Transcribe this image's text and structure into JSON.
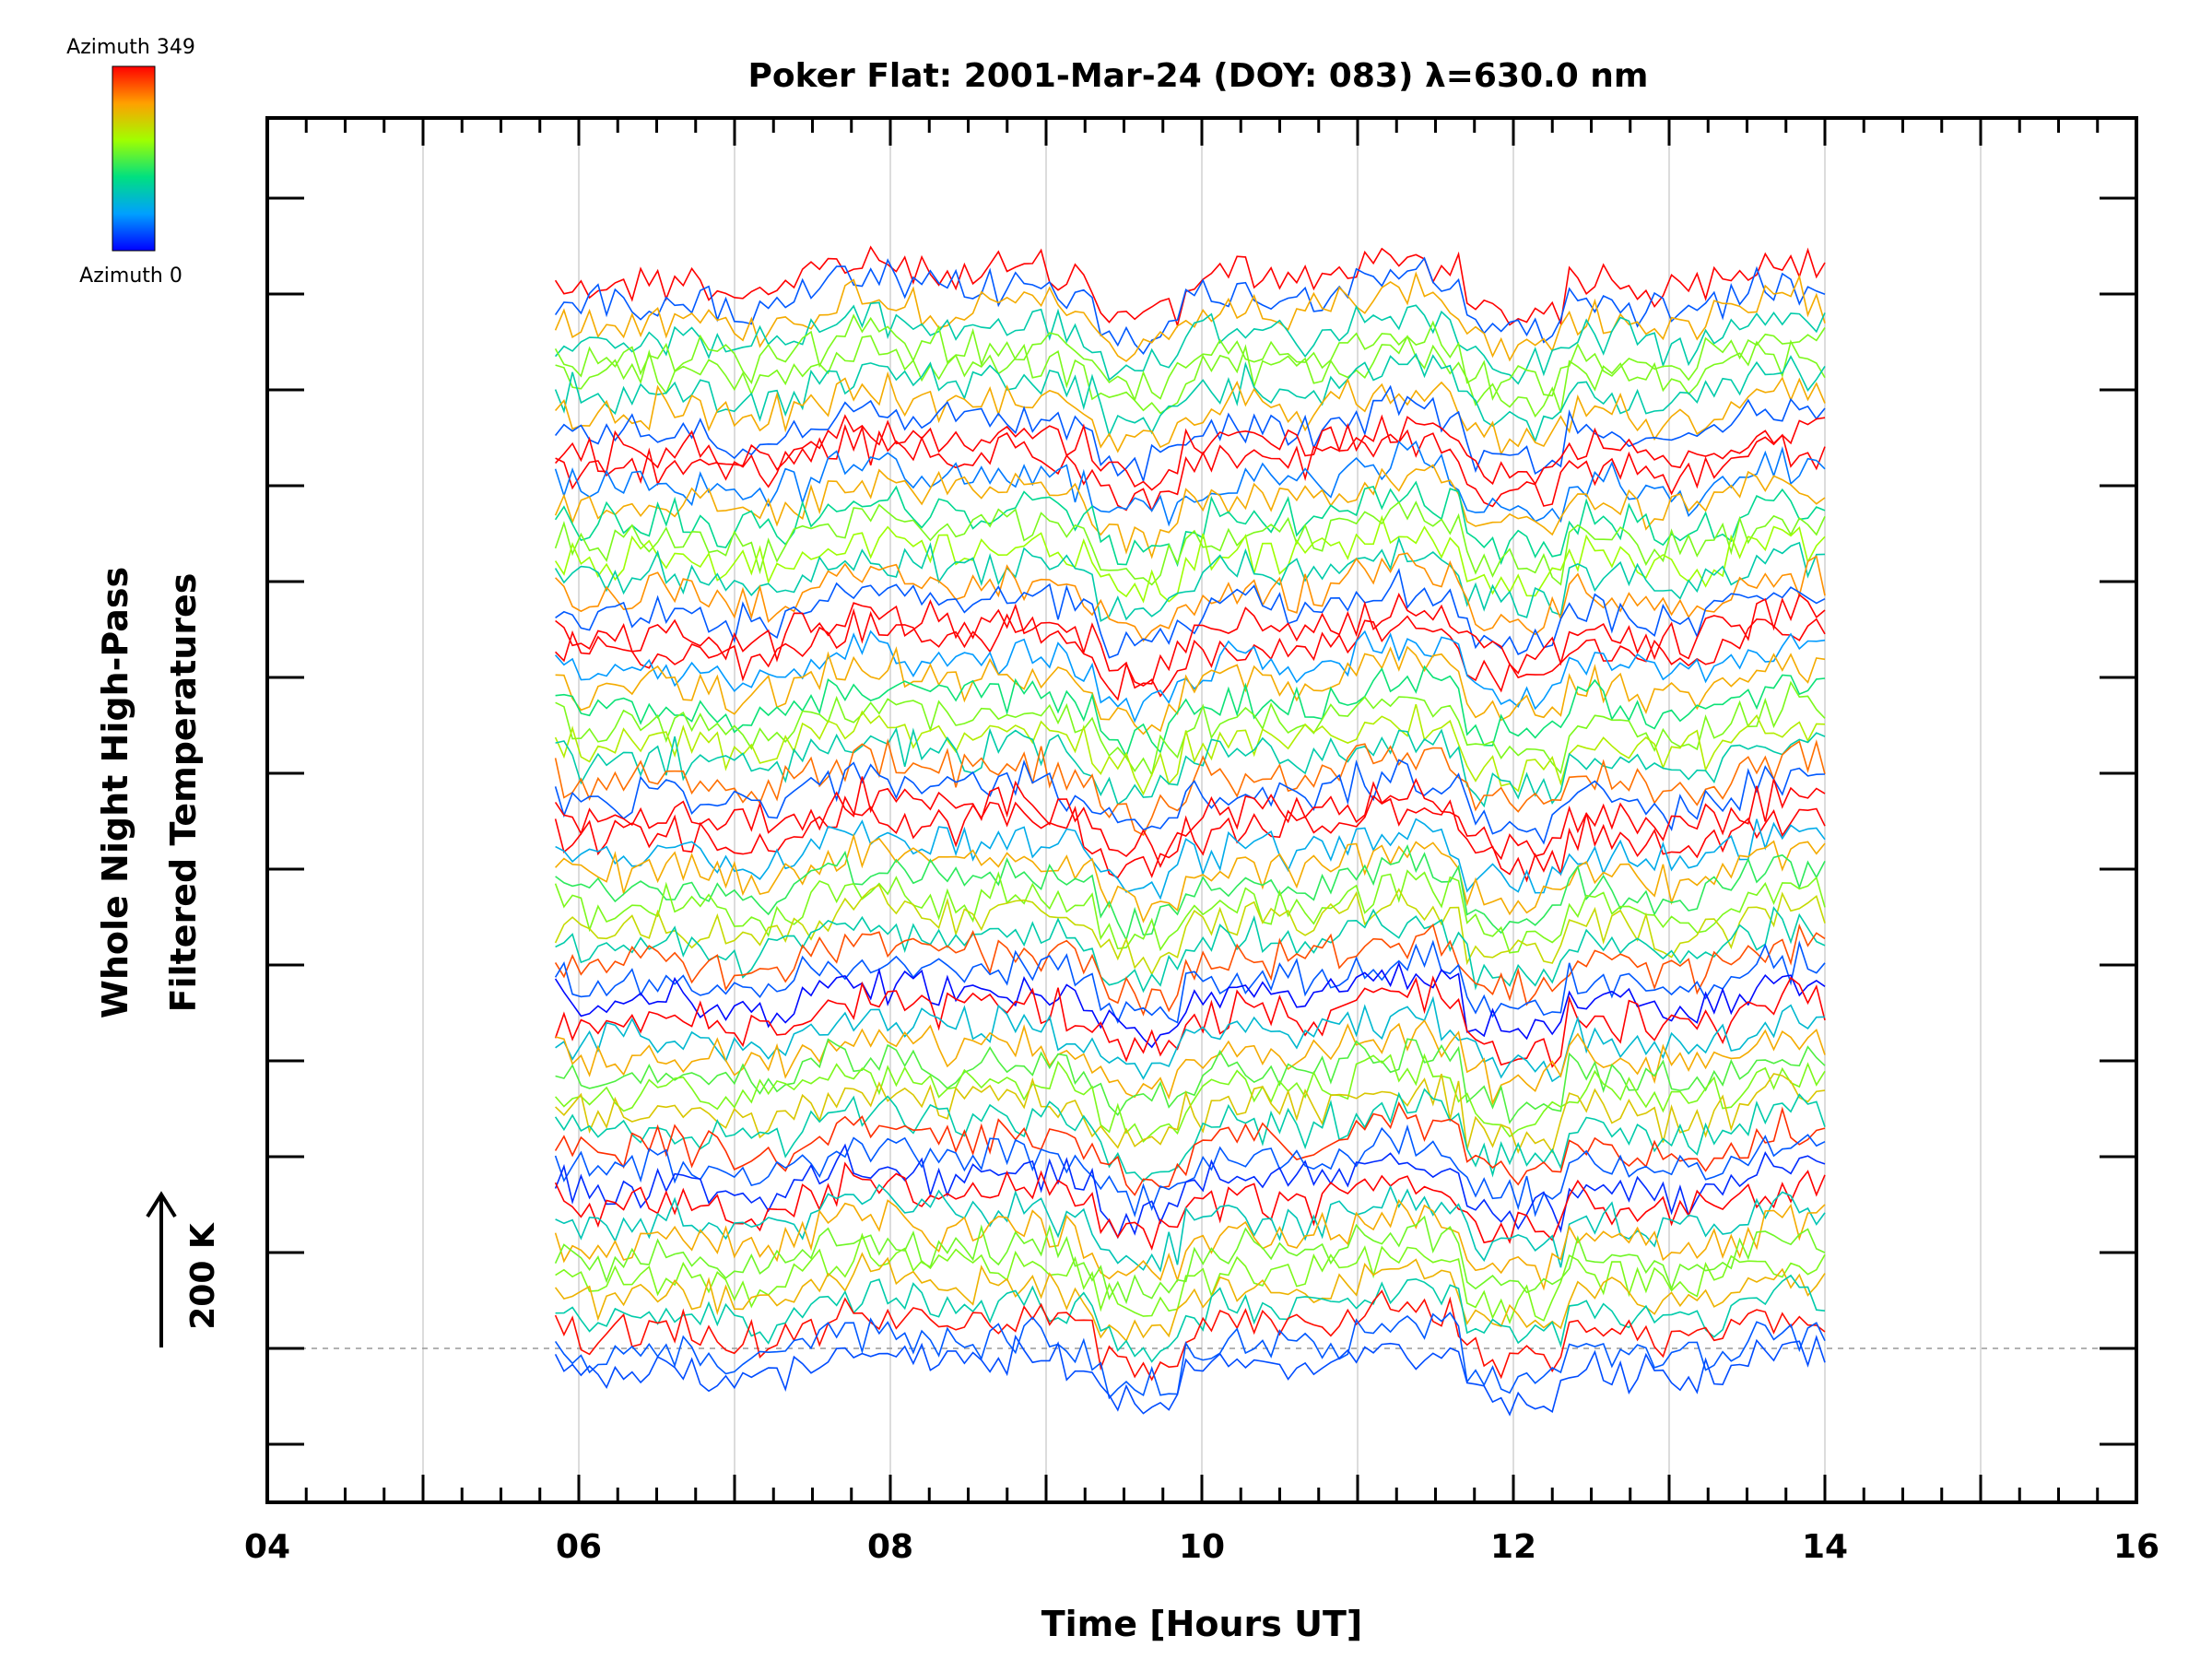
{
  "chart_data": {
    "type": "line",
    "title": "Poker Flat: 2001-Mar-24 (DOY: 083) λ=630.0 nm",
    "xlabel": "Time [Hours UT]",
    "ylabel_line1": "Whole Night High-Pass",
    "ylabel_line2": "Filtered Temperatures",
    "scale_bar_label": "200 K",
    "colorbar": {
      "top_label": "Azimuth 349",
      "bottom_label": "Azimuth 0"
    },
    "xlim": [
      4,
      16
    ],
    "x_tick_labels": [
      "04",
      "06",
      "08",
      "10",
      "12",
      "14",
      "16"
    ],
    "x_ticks": [
      4,
      6,
      8,
      10,
      12,
      14,
      16
    ],
    "data_x_range": [
      5.85,
      14.0
    ],
    "grid_x": [
      5,
      6,
      7,
      8,
      9,
      10,
      11,
      12,
      13,
      14,
      15
    ],
    "baseline_dashed": true,
    "series_count": 60,
    "series_note_colors": [
      "#0000ff",
      "#00c0ff",
      "#00ff80",
      "#c0ff00",
      "#ffa000",
      "#ff0000"
    ]
  }
}
